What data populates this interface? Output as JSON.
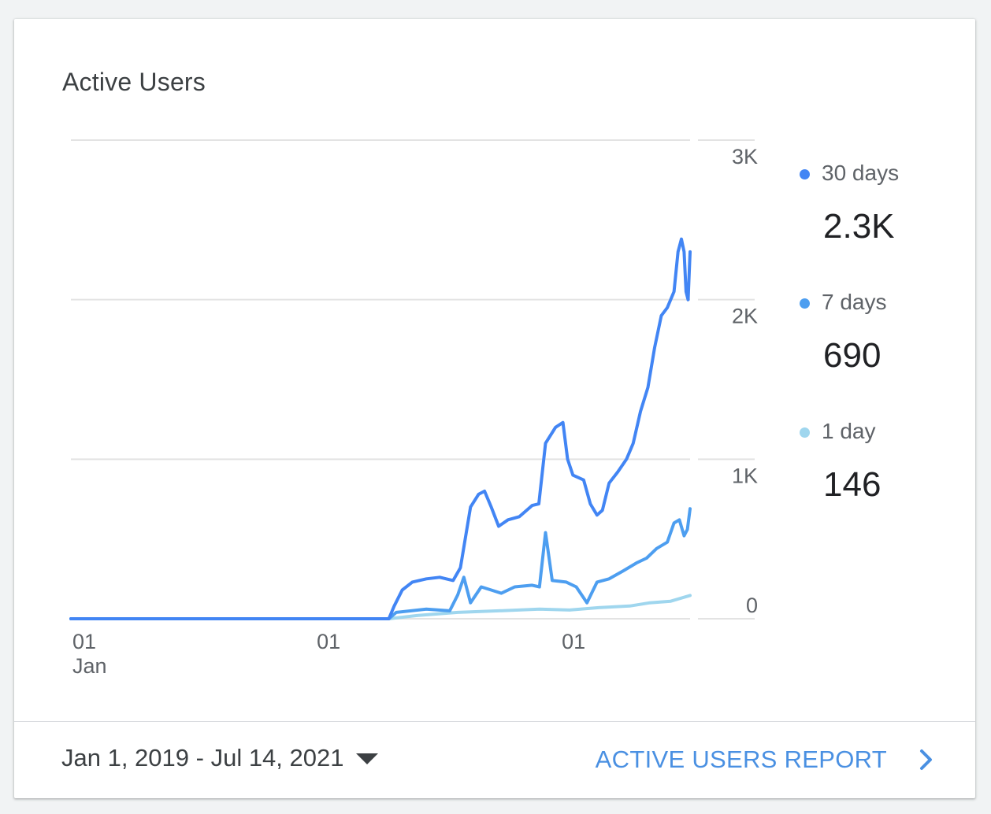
{
  "card": {
    "title": "Active Users"
  },
  "chart_data": {
    "type": "line",
    "title": "Active Users",
    "xlabel": "",
    "ylabel": "",
    "x_range": [
      "2019-01-01",
      "2021-07-14"
    ],
    "x_ticks": [
      {
        "date": "2019-01-01",
        "label": "01",
        "sublabel": "Jan"
      },
      {
        "date": "2020-01-01",
        "label": "01",
        "sublabel": ""
      },
      {
        "date": "2021-01-01",
        "label": "01",
        "sublabel": ""
      }
    ],
    "ylim": [
      0,
      3000
    ],
    "y_ticks": [
      {
        "value": 0,
        "label": "0"
      },
      {
        "value": 1000,
        "label": "1K"
      },
      {
        "value": 2000,
        "label": "2K"
      },
      {
        "value": 3000,
        "label": "3K"
      }
    ],
    "grid": true,
    "y_axis_side": "right",
    "legend_position": "right",
    "series": [
      {
        "name": "30 days",
        "color": "#4285f4",
        "points": [
          [
            "2019-01-01",
            0
          ],
          [
            "2019-12-01",
            0
          ],
          [
            "2020-04-20",
            0
          ],
          [
            "2020-04-28",
            80
          ],
          [
            "2020-05-10",
            180
          ],
          [
            "2020-05-25",
            230
          ],
          [
            "2020-06-15",
            250
          ],
          [
            "2020-07-05",
            260
          ],
          [
            "2020-07-25",
            240
          ],
          [
            "2020-08-05",
            320
          ],
          [
            "2020-08-20",
            700
          ],
          [
            "2020-09-01",
            780
          ],
          [
            "2020-09-10",
            800
          ],
          [
            "2020-09-20",
            700
          ],
          [
            "2020-10-01",
            580
          ],
          [
            "2020-10-15",
            620
          ],
          [
            "2020-11-01",
            640
          ],
          [
            "2020-11-20",
            710
          ],
          [
            "2020-11-30",
            720
          ],
          [
            "2020-12-10",
            1100
          ],
          [
            "2020-12-25",
            1200
          ],
          [
            "2021-01-05",
            1230
          ],
          [
            "2021-01-12",
            1000
          ],
          [
            "2021-01-20",
            900
          ],
          [
            "2021-02-05",
            870
          ],
          [
            "2021-02-15",
            720
          ],
          [
            "2021-02-25",
            650
          ],
          [
            "2021-03-05",
            680
          ],
          [
            "2021-03-15",
            850
          ],
          [
            "2021-03-28",
            920
          ],
          [
            "2021-04-10",
            1000
          ],
          [
            "2021-04-20",
            1100
          ],
          [
            "2021-05-01",
            1300
          ],
          [
            "2021-05-12",
            1450
          ],
          [
            "2021-05-22",
            1700
          ],
          [
            "2021-06-01",
            1900
          ],
          [
            "2021-06-10",
            1950
          ],
          [
            "2021-06-20",
            2050
          ],
          [
            "2021-06-26",
            2300
          ],
          [
            "2021-07-01",
            2380
          ],
          [
            "2021-07-05",
            2300
          ],
          [
            "2021-07-08",
            2050
          ],
          [
            "2021-07-11",
            2000
          ],
          [
            "2021-07-14",
            2300
          ]
        ]
      },
      {
        "name": "7 days",
        "color": "#4d9ef0",
        "points": [
          [
            "2019-01-01",
            0
          ],
          [
            "2019-12-01",
            0
          ],
          [
            "2020-04-20",
            0
          ],
          [
            "2020-05-01",
            40
          ],
          [
            "2020-06-15",
            60
          ],
          [
            "2020-07-20",
            50
          ],
          [
            "2020-08-01",
            150
          ],
          [
            "2020-08-10",
            260
          ],
          [
            "2020-08-20",
            100
          ],
          [
            "2020-09-05",
            200
          ],
          [
            "2020-09-20",
            180
          ],
          [
            "2020-10-05",
            160
          ],
          [
            "2020-10-25",
            200
          ],
          [
            "2020-11-20",
            210
          ],
          [
            "2020-12-01",
            200
          ],
          [
            "2020-12-10",
            540
          ],
          [
            "2020-12-20",
            240
          ],
          [
            "2021-01-10",
            230
          ],
          [
            "2021-01-25",
            200
          ],
          [
            "2021-02-10",
            100
          ],
          [
            "2021-02-25",
            230
          ],
          [
            "2021-03-15",
            250
          ],
          [
            "2021-04-05",
            300
          ],
          [
            "2021-04-25",
            350
          ],
          [
            "2021-05-10",
            380
          ],
          [
            "2021-05-25",
            440
          ],
          [
            "2021-06-10",
            480
          ],
          [
            "2021-06-20",
            600
          ],
          [
            "2021-06-28",
            620
          ],
          [
            "2021-07-05",
            520
          ],
          [
            "2021-07-10",
            560
          ],
          [
            "2021-07-14",
            690
          ]
        ]
      },
      {
        "name": "1 day",
        "color": "#9fd6ee",
        "points": [
          [
            "2019-01-01",
            0
          ],
          [
            "2019-12-01",
            0
          ],
          [
            "2020-04-20",
            0
          ],
          [
            "2020-06-01",
            20
          ],
          [
            "2020-08-01",
            40
          ],
          [
            "2020-10-01",
            50
          ],
          [
            "2020-12-01",
            60
          ],
          [
            "2021-01-15",
            55
          ],
          [
            "2021-03-01",
            70
          ],
          [
            "2021-04-15",
            80
          ],
          [
            "2021-05-15",
            100
          ],
          [
            "2021-06-15",
            110
          ],
          [
            "2021-07-14",
            146
          ]
        ]
      }
    ]
  },
  "legend": {
    "items": [
      {
        "label": "30 days",
        "value": "2.3K",
        "color": "#4285f4"
      },
      {
        "label": "7 days",
        "value": "690",
        "color": "#4d9ef0"
      },
      {
        "label": "1 day",
        "value": "146",
        "color": "#9fd6ee"
      }
    ]
  },
  "footer": {
    "date_range": "Jan 1, 2019 - Jul 14, 2021",
    "report_link": "ACTIVE USERS REPORT",
    "icons": {
      "dropdown": "caret-down-icon",
      "link": "chevron-right-icon"
    }
  }
}
